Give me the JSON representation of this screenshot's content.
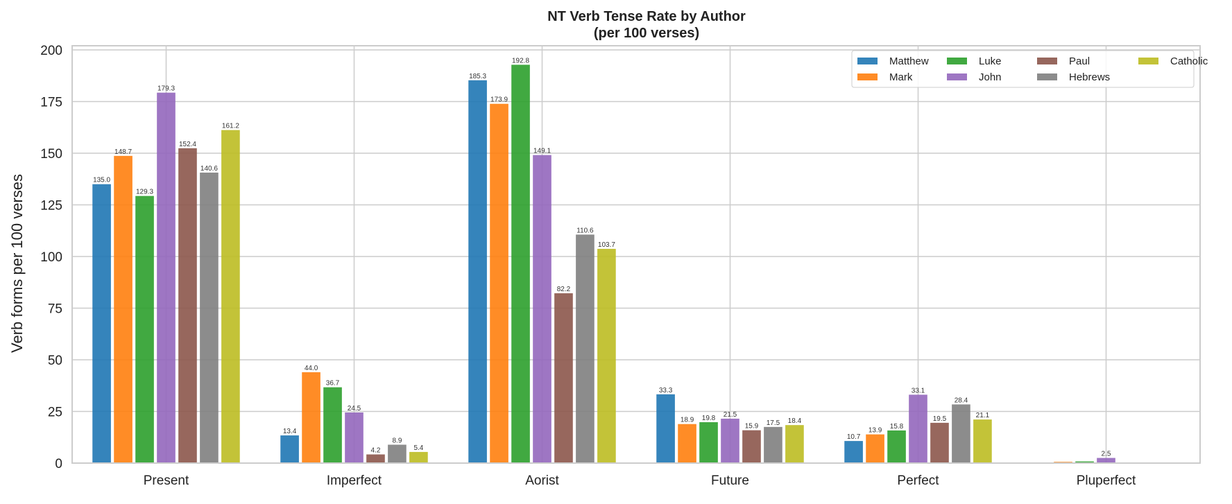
{
  "chart_data": {
    "type": "bar",
    "title": "NT Verb Tense Rate by Author",
    "subtitle": "(per 100 verses)",
    "xlabel": "",
    "ylabel": "Verb forms per 100 verses",
    "ylim": [
      0,
      202
    ],
    "yticks": [
      0,
      25,
      50,
      75,
      100,
      125,
      150,
      175,
      200
    ],
    "grid": true,
    "legend_position": "top-right",
    "categories": [
      "Present",
      "Imperfect",
      "Aorist",
      "Future",
      "Perfect",
      "Pluperfect"
    ],
    "series": [
      {
        "name": "Matthew",
        "color": "#1f77b4",
        "values": [
          135.0,
          13.4,
          185.3,
          33.3,
          10.7,
          0.0
        ],
        "labels": [
          "135.0",
          "13.4",
          "185.3",
          "33.3",
          "10.7",
          ""
        ]
      },
      {
        "name": "Mark",
        "color": "#ff7f0e",
        "values": [
          148.7,
          44.0,
          173.9,
          18.9,
          13.9,
          0.6
        ],
        "labels": [
          "148.7",
          "44.0",
          "173.9",
          "18.9",
          "13.9",
          ""
        ]
      },
      {
        "name": "Luke",
        "color": "#2ca02c",
        "values": [
          129.3,
          36.7,
          192.8,
          19.8,
          15.8,
          0.8
        ],
        "labels": [
          "129.3",
          "36.7",
          "192.8",
          "19.8",
          "15.8",
          ""
        ]
      },
      {
        "name": "John",
        "color": "#9467bd",
        "values": [
          179.3,
          24.5,
          149.1,
          21.5,
          33.1,
          2.5
        ],
        "labels": [
          "179.3",
          "24.5",
          "149.1",
          "21.5",
          "33.1",
          "2.5"
        ]
      },
      {
        "name": "Paul",
        "color": "#8c564b",
        "values": [
          152.4,
          4.2,
          82.2,
          15.9,
          19.5,
          0.0
        ],
        "labels": [
          "152.4",
          "4.2",
          "82.2",
          "15.9",
          "19.5",
          ""
        ]
      },
      {
        "name": "Hebrews",
        "color": "#7f7f7f",
        "values": [
          140.6,
          8.9,
          110.6,
          17.5,
          28.4,
          0.0
        ],
        "labels": [
          "140.6",
          "8.9",
          "110.6",
          "17.5",
          "28.4",
          ""
        ]
      },
      {
        "name": "Catholic",
        "color": "#bcbd22",
        "values": [
          161.2,
          5.4,
          103.7,
          18.4,
          21.1,
          0.0
        ],
        "labels": [
          "161.2",
          "5.4",
          "103.7",
          "18.4",
          "21.1",
          ""
        ]
      }
    ]
  }
}
